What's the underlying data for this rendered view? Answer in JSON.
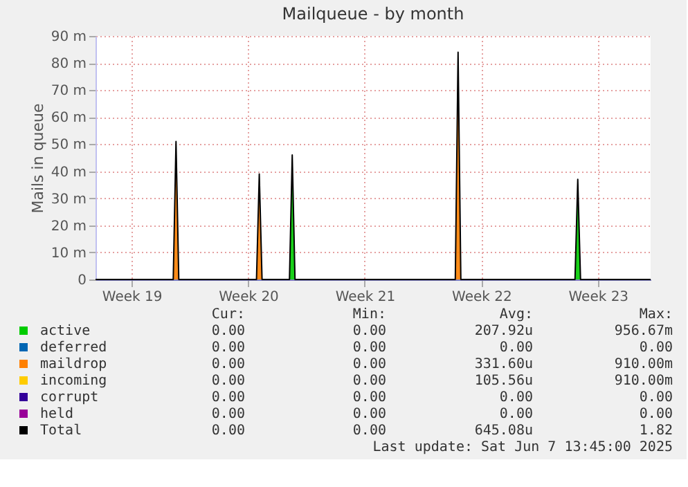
{
  "chart_data": {
    "type": "area",
    "title": "Mailqueue - by month",
    "ylabel": "Mails in queue",
    "xlim": [
      "2025-05-06T08:00",
      "2025-06-08T16:00"
    ],
    "xticks": [
      {
        "value": "2025-05-08T12:00",
        "label": "Week 19"
      },
      {
        "value": "2025-05-15T12:00",
        "label": "Week 20"
      },
      {
        "value": "2025-05-22T12:00",
        "label": "Week 21"
      },
      {
        "value": "2025-05-29T12:00",
        "label": "Week 22"
      },
      {
        "value": "2025-06-05T12:00",
        "label": "Week 23"
      }
    ],
    "ylim": [
      0,
      90
    ],
    "yticks": [
      0,
      {
        "value": 10,
        "label": "10 m"
      },
      {
        "value": 20,
        "label": "20 m"
      },
      {
        "value": 30,
        "label": "30 m"
      },
      {
        "value": 40,
        "label": "40 m"
      },
      {
        "value": 50,
        "label": "50 m"
      },
      {
        "value": 60,
        "label": "60 m"
      },
      {
        "value": 70,
        "label": "70 m"
      },
      {
        "value": 80,
        "label": "80 m"
      },
      {
        "value": 90,
        "label": "90 m"
      }
    ],
    "grid": true,
    "legend": "bottom",
    "series": [
      {
        "name": "active",
        "color": "#00cc00",
        "x": [
          "2025-05-17T23:30",
          "2025-05-18T03:30",
          "2025-05-18T07:30",
          "2025-06-04T03:00",
          "2025-06-04T07:00",
          "2025-06-04T11:00"
        ],
        "values": [
          0,
          46,
          0,
          0,
          37,
          0
        ]
      },
      {
        "name": "deferred",
        "color": "#0066b3"
      },
      {
        "name": "maildrop",
        "color": "#ff8000",
        "x": [
          "2025-05-11T00:00",
          "2025-05-11T04:00",
          "2025-05-11T08:00",
          "2025-05-16T00:00",
          "2025-05-16T04:00",
          "2025-05-16T08:00",
          "2025-05-27T22:30",
          "2025-05-28T02:30",
          "2025-05-28T06:30"
        ],
        "values": [
          0,
          51,
          0,
          0,
          39,
          0,
          0,
          84,
          0
        ]
      },
      {
        "name": "incoming",
        "color": "#ffcc00"
      },
      {
        "name": "corrupt",
        "color": "#330099"
      },
      {
        "name": "held",
        "color": "#990099"
      },
      {
        "name": "Total",
        "color": "#000000",
        "type": "line",
        "x": [
          "2025-05-06T08:00",
          "2025-05-11T00:00",
          "2025-05-11T04:00",
          "2025-05-11T08:00",
          "2025-05-16T00:00",
          "2025-05-16T04:00",
          "2025-05-16T08:00",
          "2025-05-17T23:30",
          "2025-05-18T03:30",
          "2025-05-18T07:30",
          "2025-05-27T22:30",
          "2025-05-28T02:30",
          "2025-05-28T06:30",
          "2025-06-04T03:00",
          "2025-06-04T07:00",
          "2025-06-04T11:00",
          "2025-06-08T16:00"
        ],
        "values": [
          0,
          0,
          51,
          0,
          0,
          39,
          0,
          0,
          46,
          0,
          0,
          84,
          0,
          0,
          37,
          0,
          0
        ]
      }
    ],
    "annotations": [
      "Cur:",
      "Min:",
      "Avg:",
      "Max:",
      "0.00",
      "0.00",
      "207.92u",
      "956.67m",
      "0.00",
      "0.00",
      "0.00",
      "0.00",
      "0.00",
      "0.00",
      "331.60u",
      "910.00m",
      "0.00",
      "0.00",
      "105.56u",
      "910.00m",
      "0.00",
      "0.00",
      "0.00",
      "0.00",
      "0.00",
      "0.00",
      "0.00",
      "0.00",
      "0.00",
      "0.00",
      "645.08u",
      "1.82",
      "Last update:  Sat Jun  7 13:45:00 2025"
    ]
  }
}
